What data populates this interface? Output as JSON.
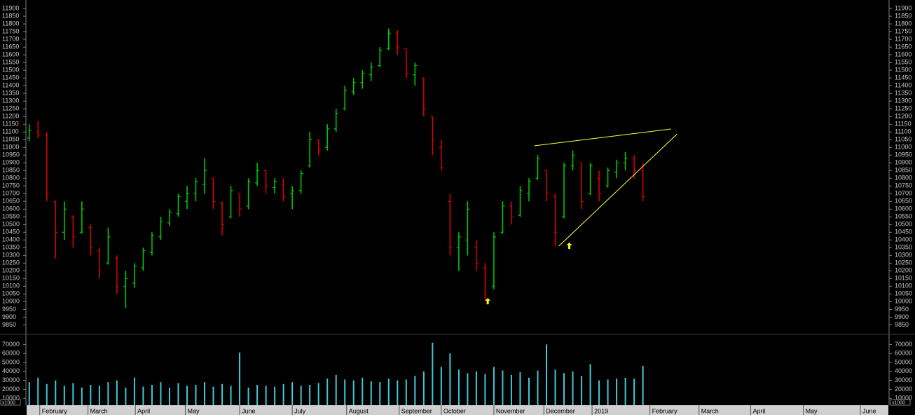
{
  "chart_data": [
    {
      "type": "ohlc",
      "x": [
        0,
        1,
        2,
        3,
        4,
        5,
        6,
        7,
        8,
        9,
        10,
        11,
        12,
        13,
        14,
        15,
        16,
        17,
        18,
        19,
        20,
        21,
        22,
        23,
        24,
        25,
        26,
        27,
        28,
        29,
        30,
        31,
        32,
        33,
        34,
        35,
        36,
        37,
        38,
        39,
        40,
        41,
        42,
        43,
        44,
        45,
        46,
        47,
        48,
        49,
        50,
        51,
        52,
        53,
        54,
        55,
        56,
        57,
        58,
        59,
        60,
        61,
        62,
        63,
        64,
        65,
        66,
        67,
        68,
        69,
        70
      ],
      "open": [
        11060,
        11100,
        11080,
        10650,
        10450,
        10550,
        10450,
        10480,
        10330,
        10250,
        10280,
        10100,
        10120,
        10220,
        10320,
        10420,
        10510,
        10570,
        10650,
        10700,
        10760,
        10800,
        10640,
        10550,
        10700,
        10620,
        10770,
        10850,
        10740,
        10760,
        10700,
        10720,
        10880,
        11050,
        11000,
        11120,
        11250,
        11360,
        11420,
        11470,
        11530,
        11640,
        11740,
        11640,
        11470,
        11450,
        11200,
        11000,
        10650,
        10350,
        10400,
        10350,
        10220,
        10100,
        10450,
        10620,
        10560,
        10700,
        10800,
        10850,
        10680,
        10550,
        10880,
        10900,
        10700,
        10800,
        10750,
        10840,
        10900,
        10930,
        10850
      ],
      "high": [
        11150,
        11170,
        11100,
        10650,
        10650,
        10560,
        10650,
        10500,
        10350,
        10480,
        10300,
        10200,
        10250,
        10350,
        10450,
        10550,
        10600,
        10700,
        10750,
        10800,
        10930,
        10800,
        10650,
        10750,
        10700,
        10800,
        10900,
        10850,
        10800,
        10800,
        10750,
        10850,
        11100,
        11050,
        11150,
        11250,
        11400,
        11450,
        11500,
        11550,
        11650,
        11770,
        11760,
        11640,
        11550,
        11450,
        11200,
        11050,
        10700,
        10450,
        10650,
        10400,
        10250,
        10450,
        10650,
        10650,
        10750,
        10800,
        10950,
        10850,
        10700,
        10900,
        10980,
        10900,
        10900,
        10850,
        10870,
        10920,
        10970,
        10950,
        10900
      ],
      "low": [
        11040,
        11060,
        10650,
        10280,
        10400,
        10350,
        10440,
        10300,
        10150,
        10240,
        10050,
        9960,
        10090,
        10200,
        10300,
        10400,
        10490,
        10550,
        10600,
        10650,
        10700,
        10600,
        10430,
        10540,
        10550,
        10600,
        10750,
        10700,
        10700,
        10650,
        10600,
        10700,
        10870,
        10950,
        10980,
        11100,
        11240,
        11340,
        11380,
        11430,
        11520,
        11630,
        11600,
        11450,
        11400,
        11200,
        10950,
        10850,
        10300,
        10200,
        10300,
        10200,
        10010,
        10080,
        10440,
        10500,
        10550,
        10650,
        10790,
        10650,
        10360,
        10540,
        10850,
        10600,
        10690,
        10650,
        10740,
        10800,
        10850,
        10800,
        10650
      ],
      "close": [
        11110,
        11080,
        10700,
        10450,
        10600,
        10420,
        10600,
        10350,
        10200,
        10420,
        10100,
        10150,
        10230,
        10330,
        10430,
        10520,
        10580,
        10680,
        10700,
        10780,
        10850,
        10650,
        10500,
        10720,
        10600,
        10780,
        10850,
        10750,
        10780,
        10680,
        10720,
        10830,
        11050,
        10980,
        11120,
        11220,
        11370,
        11420,
        11480,
        11520,
        11630,
        11740,
        11650,
        11480,
        11530,
        11250,
        11050,
        10870,
        10350,
        10420,
        10600,
        10250,
        10050,
        10420,
        10620,
        10550,
        10720,
        10780,
        10930,
        10700,
        10450,
        10880,
        10950,
        10650,
        10880,
        10700,
        10850,
        10900,
        10930,
        10850,
        10680
      ],
      "up_color": "#00d000",
      "down_color": "#e00000",
      "xlim": [
        -0.3,
        98
      ],
      "ylim": [
        9820,
        11955
      ],
      "yticks": [
        9850,
        9900,
        9950,
        10000,
        10050,
        10100,
        10150,
        10200,
        10250,
        10300,
        10350,
        10400,
        10450,
        10500,
        10550,
        10600,
        10650,
        10700,
        10750,
        10800,
        10850,
        10900,
        10950,
        11000,
        11050,
        11100,
        11150,
        11200,
        11250,
        11300,
        11350,
        11400,
        11450,
        11500,
        11550,
        11600,
        11650,
        11700,
        11750,
        11800,
        11850,
        11900
      ],
      "xticks": [
        {
          "value": 1.2,
          "label": "February"
        },
        {
          "value": 6.7,
          "label": "March"
        },
        {
          "value": 12.1,
          "label": "April"
        },
        {
          "value": 17.8,
          "label": "May"
        },
        {
          "value": 24.0,
          "label": "June"
        },
        {
          "value": 30.0,
          "label": "July"
        },
        {
          "value": 36.2,
          "label": "August"
        },
        {
          "value": 42.2,
          "label": "September"
        },
        {
          "value": 47.0,
          "label": "October"
        },
        {
          "value": 53.0,
          "label": "November"
        },
        {
          "value": 58.7,
          "label": "December"
        },
        {
          "value": 64.2,
          "label": "2019"
        },
        {
          "value": 70.8,
          "label": "February"
        },
        {
          "value": 76.4,
          "label": "March"
        },
        {
          "value": 82.3,
          "label": "April"
        },
        {
          "value": 88.3,
          "label": "May"
        },
        {
          "value": 94.8,
          "label": "June"
        }
      ],
      "trendlines": [
        {
          "x": [
            57.6,
            73.2
          ],
          "y": [
            11010,
            11119
          ],
          "color": "#ffff40"
        },
        {
          "x": [
            60.4,
            73.9
          ],
          "y": [
            10360,
            11087
          ],
          "color": "#ffff40"
        }
      ],
      "markers": {
        "x": [
          52.3,
          61.6
        ],
        "y": [
          10024,
          10383
        ],
        "color": "#ffff00"
      }
    },
    {
      "type": "bar",
      "x": [
        0,
        1,
        2,
        3,
        4,
        5,
        6,
        7,
        8,
        9,
        10,
        11,
        12,
        13,
        14,
        15,
        16,
        17,
        18,
        19,
        20,
        21,
        22,
        23,
        24,
        25,
        26,
        27,
        28,
        29,
        30,
        31,
        32,
        33,
        34,
        35,
        36,
        37,
        38,
        39,
        40,
        41,
        42,
        43,
        44,
        45,
        46,
        47,
        48,
        49,
        50,
        51,
        52,
        53,
        54,
        55,
        56,
        57,
        58,
        59,
        60,
        61,
        62,
        63,
        64,
        65,
        66,
        67,
        68,
        69,
        70
      ],
      "values": [
        28000,
        33000,
        26000,
        30000,
        24000,
        27000,
        22000,
        25000,
        24000,
        28000,
        30000,
        22000,
        33000,
        23000,
        25000,
        28000,
        22000,
        27000,
        24000,
        25000,
        28000,
        23000,
        26000,
        24000,
        61000,
        22000,
        25000,
        24000,
        23000,
        26000,
        28000,
        24000,
        25000,
        27000,
        32000,
        36000,
        31000,
        30000,
        33000,
        29000,
        28000,
        32000,
        30000,
        31000,
        35000,
        40000,
        72000,
        45000,
        60000,
        42000,
        38000,
        40000,
        37000,
        45000,
        41000,
        36000,
        39000,
        33000,
        41000,
        70000,
        42000,
        38000,
        40000,
        35000,
        48000,
        30000,
        31000,
        32000,
        33000,
        32000,
        46000
      ],
      "color": "#40c8d8",
      "xlim": [
        -0.3,
        98
      ],
      "ylim": [
        0,
        75000
      ],
      "yticks": [
        10000,
        20000,
        30000,
        40000,
        50000,
        60000,
        70000
      ],
      "y_unit_label": "x1000"
    }
  ]
}
